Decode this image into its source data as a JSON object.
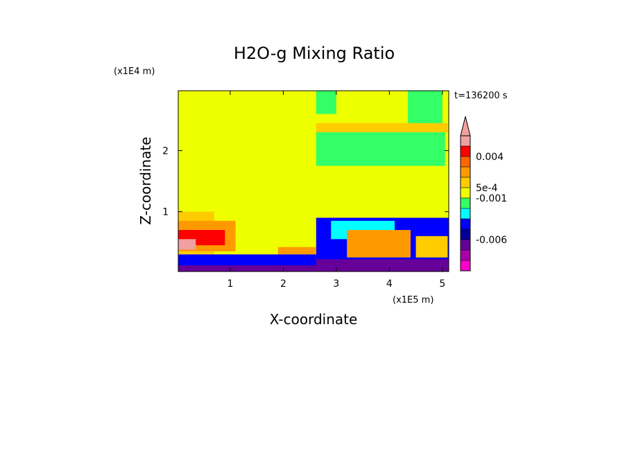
{
  "chart_data": {
    "type": "heatmap",
    "title": "H2O-g Mixing Ratio",
    "xlabel": "X-coordinate",
    "ylabel": "Z-coordinate",
    "x_scale_label": "(x1E5 m)",
    "y_scale_label": "(x1E4 m)",
    "time_label": "t=136200 s",
    "x_ticks": [
      "1",
      "2",
      "3",
      "4",
      "5"
    ],
    "x_tick_values": [
      1,
      2,
      3,
      4,
      5
    ],
    "y_ticks": [
      "1",
      "2"
    ],
    "y_tick_values": [
      1,
      2
    ],
    "xlim": [
      0.02,
      5.12
    ],
    "ylim": [
      0.02,
      2.98
    ],
    "colorbar": {
      "labels": [
        "0.004",
        "5e-4",
        "-0.001",
        "-0.006"
      ],
      "label_values": [
        0.004,
        0.0005,
        -0.001,
        -0.006
      ],
      "colors": [
        "#f0a0a0",
        "#ff0000",
        "#ff6600",
        "#ff9900",
        "#ffcc00",
        "#eeff00",
        "#33ff66",
        "#00ffff",
        "#0000ff",
        "#000099",
        "#660099",
        "#aa00aa",
        "#ff00cc"
      ],
      "extend": "max"
    },
    "regions": [
      {
        "level": "#eeff00",
        "x0": 0.02,
        "x1": 5.12,
        "y0": 0.02,
        "y1": 2.98
      },
      {
        "level": "#33ff66",
        "x0": 2.62,
        "x1": 5.05,
        "y0": 1.75,
        "y1": 2.3
      },
      {
        "level": "#33ff66",
        "x0": 4.35,
        "x1": 5.0,
        "y0": 2.4,
        "y1": 2.98
      },
      {
        "level": "#33ff66",
        "x0": 2.62,
        "x1": 3.0,
        "y0": 2.6,
        "y1": 2.98
      },
      {
        "level": "#ffcc00",
        "x0": 2.62,
        "x1": 5.1,
        "y0": 2.3,
        "y1": 2.45
      },
      {
        "level": "#ffcc00",
        "x0": 0.02,
        "x1": 0.7,
        "y0": 0.3,
        "y1": 1.0
      },
      {
        "level": "#ff9900",
        "x0": 0.02,
        "x1": 1.1,
        "y0": 0.35,
        "y1": 0.85
      },
      {
        "level": "#ff0000",
        "x0": 0.02,
        "x1": 0.9,
        "y0": 0.45,
        "y1": 0.7
      },
      {
        "level": "#f0a0a0",
        "x0": 0.02,
        "x1": 0.35,
        "y0": 0.38,
        "y1": 0.55
      },
      {
        "level": "#0000ff",
        "x0": 2.62,
        "x1": 5.12,
        "y0": 0.02,
        "y1": 0.9
      },
      {
        "level": "#00ffff",
        "x0": 2.9,
        "x1": 4.1,
        "y0": 0.55,
        "y1": 0.85
      },
      {
        "level": "#ff9900",
        "x0": 3.2,
        "x1": 4.4,
        "y0": 0.25,
        "y1": 0.7
      },
      {
        "level": "#ffcc00",
        "x0": 4.5,
        "x1": 5.1,
        "y0": 0.25,
        "y1": 0.6
      },
      {
        "level": "#ff9900",
        "x0": 1.9,
        "x1": 2.62,
        "y0": 0.3,
        "y1": 0.42
      },
      {
        "level": "#660099",
        "x0": 0.02,
        "x1": 5.12,
        "y0": 0.02,
        "y1": 0.22
      },
      {
        "level": "#0000ff",
        "x0": 0.02,
        "x1": 2.62,
        "y0": 0.12,
        "y1": 0.3
      }
    ]
  }
}
